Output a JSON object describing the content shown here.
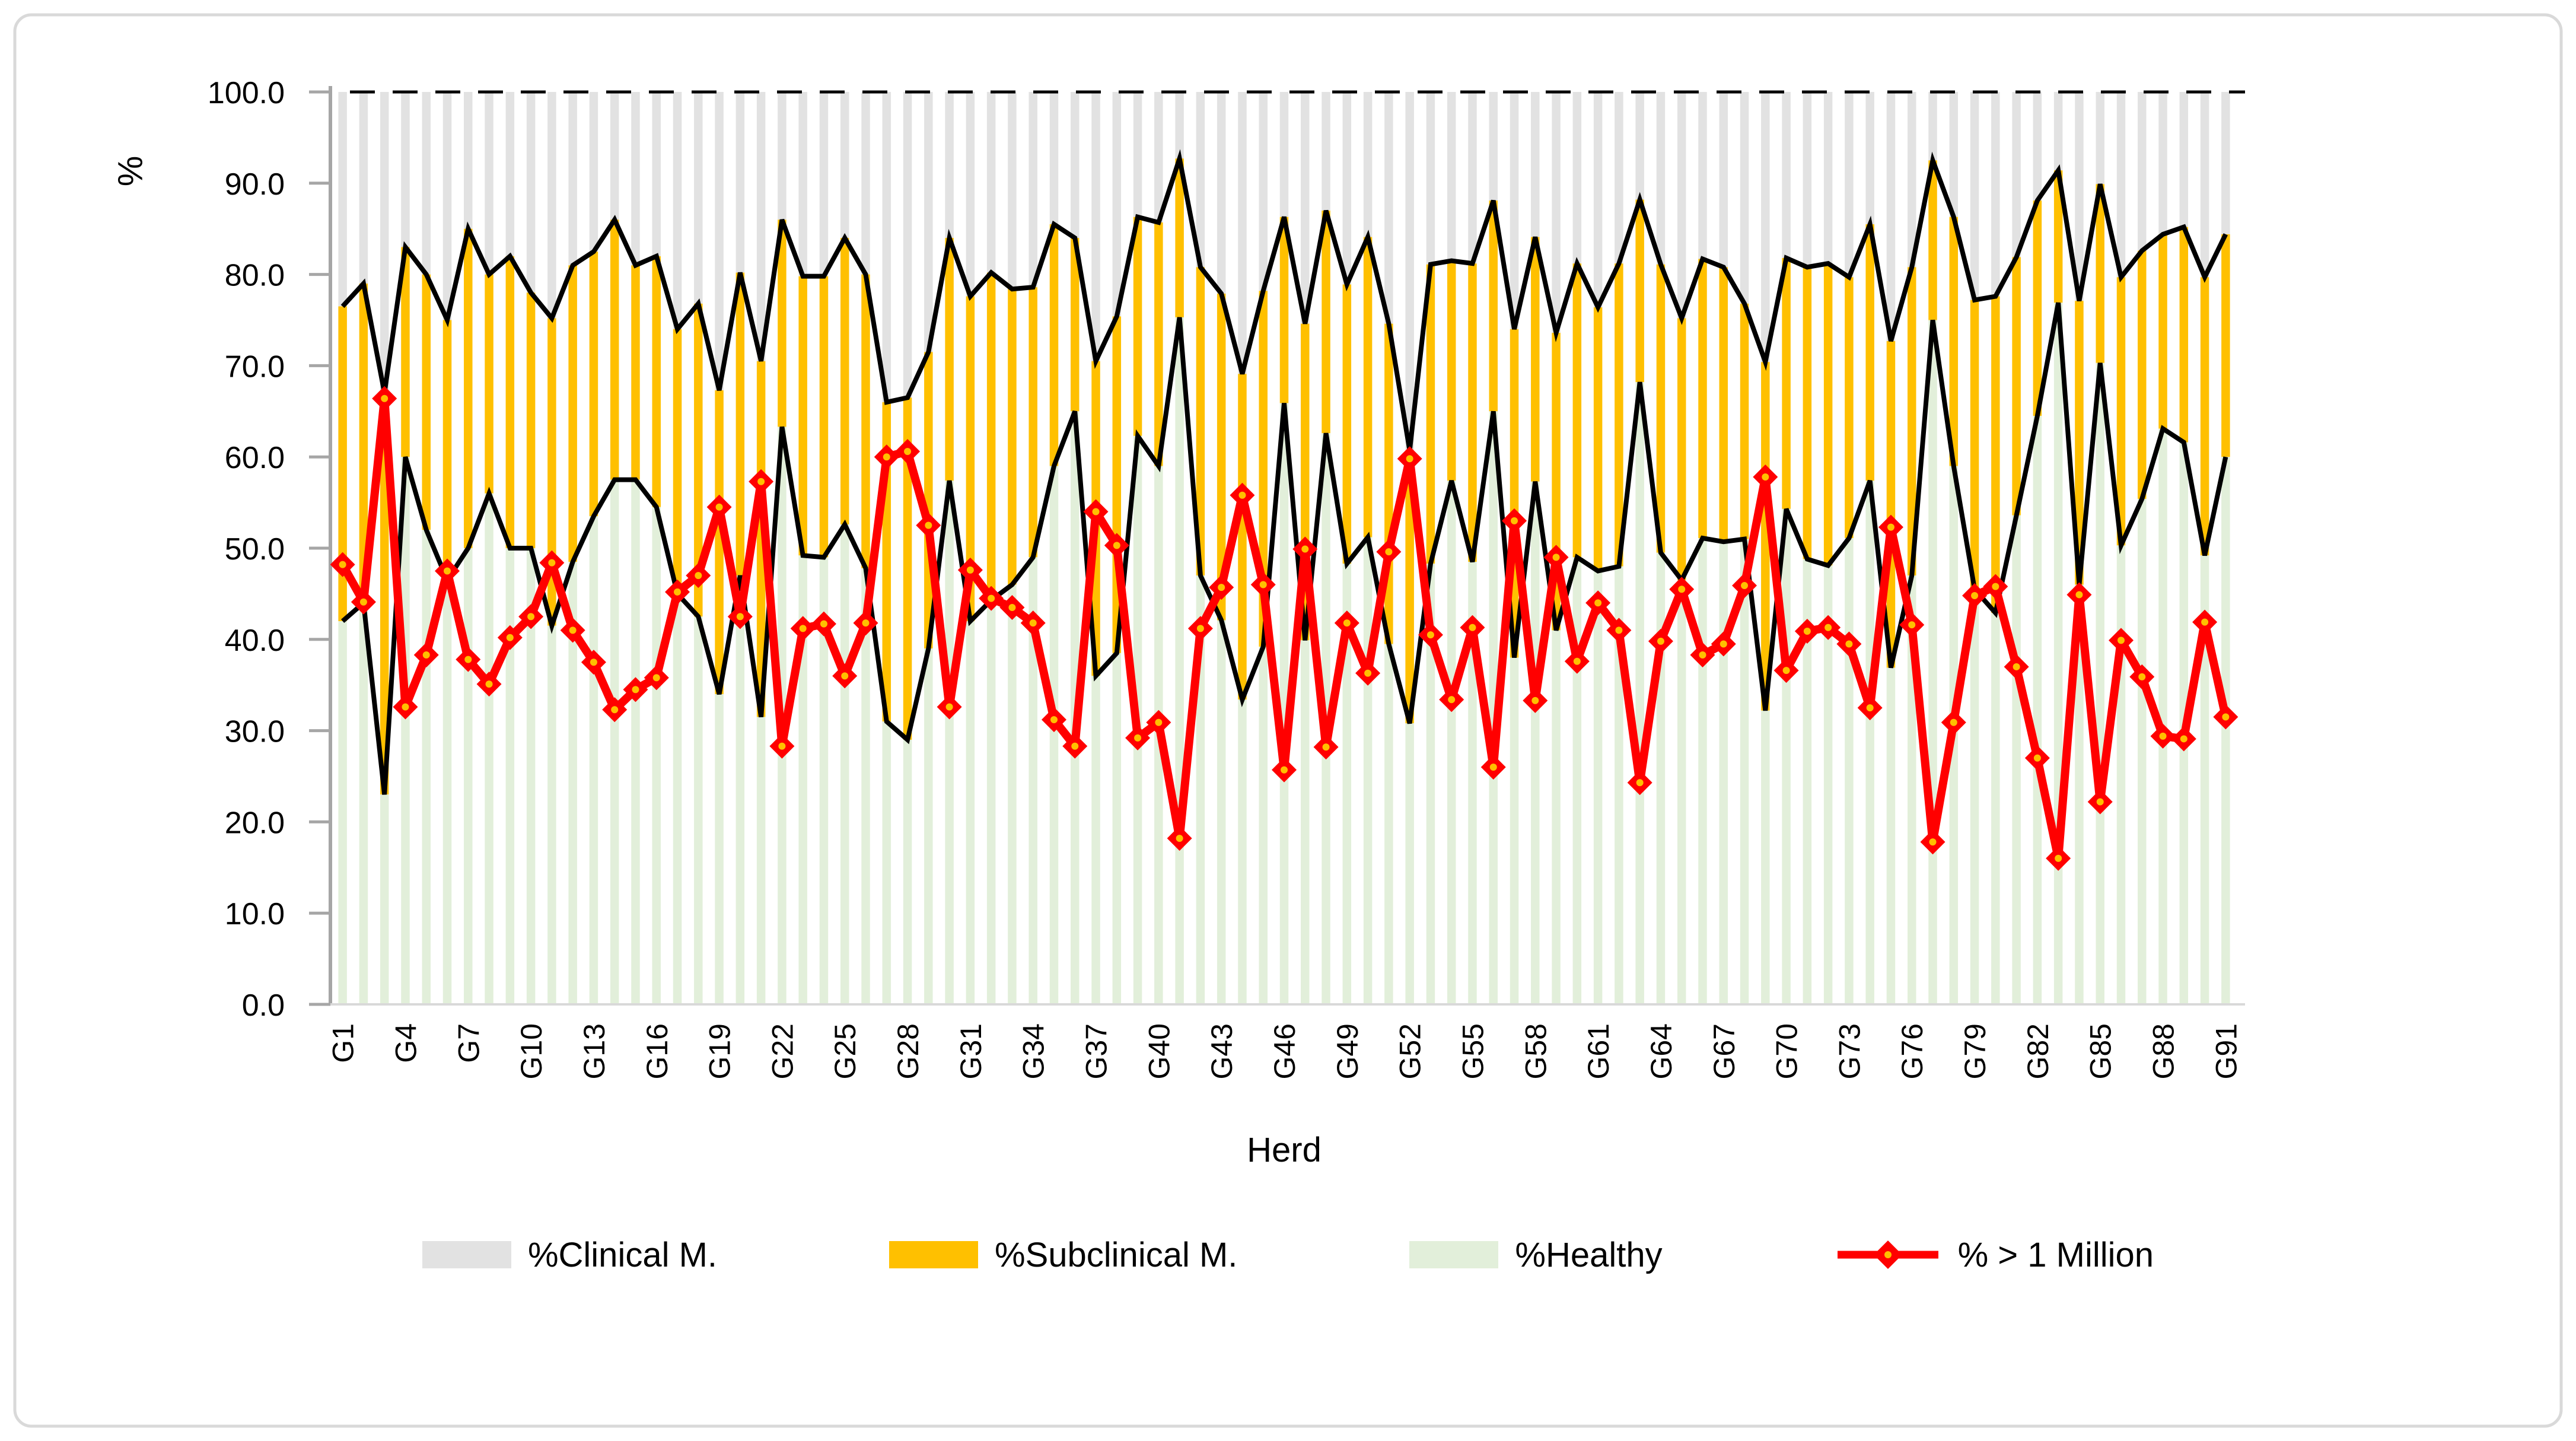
{
  "chart_data": {
    "type": "bar",
    "subtype": "100pct-stacked-columns-with-line-overlay",
    "title": "",
    "xlabel": "Herd",
    "ylabel": "%",
    "ylim": [
      0,
      100
    ],
    "grid": false,
    "legend_position": "bottom",
    "top_reference_line": {
      "value": 100,
      "style": "dashed",
      "color": "#000000"
    },
    "y_ticks": [
      "100.0",
      "90.0",
      "80.0",
      "70.0",
      "60.0",
      "50.0",
      "40.0",
      "30.0",
      "20.0",
      "10.0",
      "0.0"
    ],
    "x_tick_labels": [
      "G1",
      "G4",
      "G7",
      "G10",
      "G13",
      "G16",
      "G19",
      "G22",
      "G25",
      "G28",
      "G31",
      "G34",
      "G37",
      "G40",
      "G43",
      "G46",
      "G49",
      "G52",
      "G55",
      "G58",
      "G61",
      "G64",
      "G67",
      "G70",
      "G73",
      "G76",
      "G79",
      "G82",
      "G85",
      "G88",
      "G91"
    ],
    "categories": [
      "G1",
      "G2",
      "G3",
      "G4",
      "G5",
      "G6",
      "G7",
      "G8",
      "G9",
      "G10",
      "G11",
      "G12",
      "G13",
      "G14",
      "G15",
      "G16",
      "G17",
      "G18",
      "G19",
      "G20",
      "G21",
      "G22",
      "G23",
      "G24",
      "G25",
      "G26",
      "G27",
      "G28",
      "G29",
      "G30",
      "G31",
      "G32",
      "G33",
      "G34",
      "G35",
      "G36",
      "G37",
      "G38",
      "G39",
      "G40",
      "G41",
      "G42",
      "G43",
      "G44",
      "G45",
      "G46",
      "G47",
      "G48",
      "G49",
      "G50",
      "G51",
      "G52",
      "G53",
      "G54",
      "G55",
      "G56",
      "G57",
      "G58",
      "G59",
      "G60",
      "G61",
      "G62",
      "G63",
      "G64",
      "G65",
      "G66",
      "G67",
      "G68",
      "G69",
      "G70",
      "G71",
      "G72",
      "G73",
      "G74",
      "G75",
      "G76",
      "G77",
      "G78",
      "G79",
      "G80",
      "G81",
      "G82",
      "G83",
      "G84",
      "G85",
      "G86",
      "G87",
      "G88",
      "G89",
      "G90",
      "G91"
    ],
    "series": [
      {
        "name": "%Clinical M.",
        "type": "column",
        "color": "#E2E2E2",
        "values": [
          23.5,
          21,
          33,
          17,
          20,
          25,
          15,
          20,
          18,
          22,
          24.8,
          19,
          17.5,
          14,
          19,
          18,
          26,
          23.2,
          32.7,
          19.8,
          29.5,
          14,
          20.2,
          20.2,
          16,
          20,
          34,
          33.5,
          28.5,
          16,
          22.4,
          19.8,
          21.6,
          21.4,
          14.5,
          16,
          29.5,
          24.6,
          13.7,
          14.3,
          7.3,
          19.2,
          22.1,
          30.9,
          21.8,
          13.7,
          25.4,
          13,
          21.1,
          15.9,
          25.4,
          39.3,
          18.9,
          18.5,
          18.8,
          11.9,
          26,
          15.9,
          26.4,
          18.8,
          23.6,
          18.8,
          11.8,
          18.9,
          24.8,
          18.3,
          19.2,
          23.2,
          29.6,
          18.2,
          19.2,
          18.8,
          20.3,
          14.5,
          27.3,
          19.2,
          7.5,
          13.7,
          22.8,
          22.4,
          18.1,
          11.9,
          8.6,
          22.9,
          10.1,
          20.3,
          17.4,
          15.6,
          14.8,
          20.3,
          15.6
        ]
      },
      {
        "name": "%Subclinical M.",
        "type": "column",
        "color": "#FFC000",
        "values": [
          34.5,
          35,
          44,
          23,
          28,
          28.5,
          35,
          24,
          32,
          28,
          33.7,
          32.5,
          29,
          28.5,
          23.5,
          27.5,
          29,
          34.3,
          33.3,
          33.2,
          39,
          22.7,
          30.6,
          30.8,
          31.4,
          32.2,
          35,
          37.5,
          32.5,
          26.6,
          35.6,
          35.9,
          32.4,
          29.6,
          26.5,
          19,
          34.5,
          36.9,
          24,
          26.7,
          17.4,
          33.8,
          35.8,
          35.7,
          39,
          20.4,
          34.7,
          24.4,
          30.6,
          32.9,
          35.1,
          29.9,
          32.8,
          24.1,
          32.7,
          23.1,
          36,
          26.8,
          32.6,
          32.2,
          28.9,
          33.2,
          20,
          31.6,
          28.7,
          30.6,
          30.1,
          25.8,
          38.2,
          27.5,
          32,
          33.1,
          28.6,
          28.1,
          35.8,
          33.8,
          17.5,
          27.3,
          31.7,
          34.7,
          28.3,
          23.6,
          14.5,
          31.1,
          19.6,
          29.4,
          27.2,
          21.3,
          23.6,
          30.5,
          24.4
        ]
      },
      {
        "name": "%Healthy",
        "type": "column",
        "color": "#E2EFDA",
        "values": [
          42,
          44,
          23,
          60,
          52,
          46.5,
          50,
          56,
          50,
          50,
          41.5,
          48.5,
          53.5,
          57.5,
          57.5,
          54.5,
          45,
          42.5,
          34,
          47,
          31.5,
          63.3,
          49.2,
          49,
          52.6,
          47.8,
          31,
          29,
          39,
          57.4,
          42,
          44.3,
          46,
          49,
          59,
          65,
          36,
          38.5,
          62.3,
          59,
          75.3,
          47,
          42.1,
          33.4,
          39.2,
          65.9,
          39.9,
          62.6,
          48.3,
          51.2,
          39.5,
          30.8,
          48.3,
          57.4,
          48.5,
          65,
          38,
          57.3,
          41,
          49,
          47.5,
          48,
          68.2,
          49.5,
          46.5,
          51.1,
          50.7,
          51,
          32.2,
          54.3,
          48.8,
          48.1,
          51.1,
          57.4,
          36.9,
          47,
          75,
          59,
          45.5,
          42.9,
          53.6,
          64.5,
          76.9,
          46,
          70.3,
          50.3,
          55.4,
          63.1,
          61.6,
          49.2,
          60
        ]
      },
      {
        "name": "% > 1 Million",
        "type": "line",
        "color": "#FF0000",
        "marker": "diamond",
        "values": [
          48.2,
          44.1,
          66.4,
          32.6,
          38.3,
          47.5,
          37.8,
          35.1,
          40.2,
          42.5,
          48.4,
          41,
          37.5,
          32.3,
          34.5,
          35.8,
          45.2,
          47,
          54.5,
          42.5,
          57.3,
          28.3,
          41.2,
          41.7,
          36,
          41.8,
          60,
          60.6,
          52.5,
          32.6,
          47.6,
          44.5,
          43.5,
          41.8,
          31.2,
          28.3,
          54,
          50.3,
          29.2,
          30.9,
          18.2,
          41.2,
          45.7,
          55.8,
          46,
          25.7,
          49.9,
          28.2,
          41.8,
          36.3,
          49.6,
          59.8,
          40.5,
          33.4,
          41.3,
          26,
          53,
          33.3,
          49,
          37.6,
          44,
          41,
          24.3,
          39.8,
          45.5,
          38.3,
          39.5,
          45.9,
          57.8,
          36.6,
          40.9,
          41.3,
          39.5,
          32.5,
          52.3,
          41.6,
          17.8,
          30.9,
          44.8,
          45.8,
          37,
          27,
          16,
          44.9,
          22.2,
          39.9,
          35.9,
          29.4,
          29.1,
          41.9,
          31.5
        ]
      }
    ],
    "boundary_line_color": "#000000",
    "axis_color": "#A6A6A6",
    "frame_color": "#D9D9D9"
  },
  "legend": {
    "clinical_label": "%Clinical M.",
    "subclinical_label": "%Subclinical M.",
    "healthy_label": "%Healthy",
    "million_label": "% > 1 Million"
  }
}
